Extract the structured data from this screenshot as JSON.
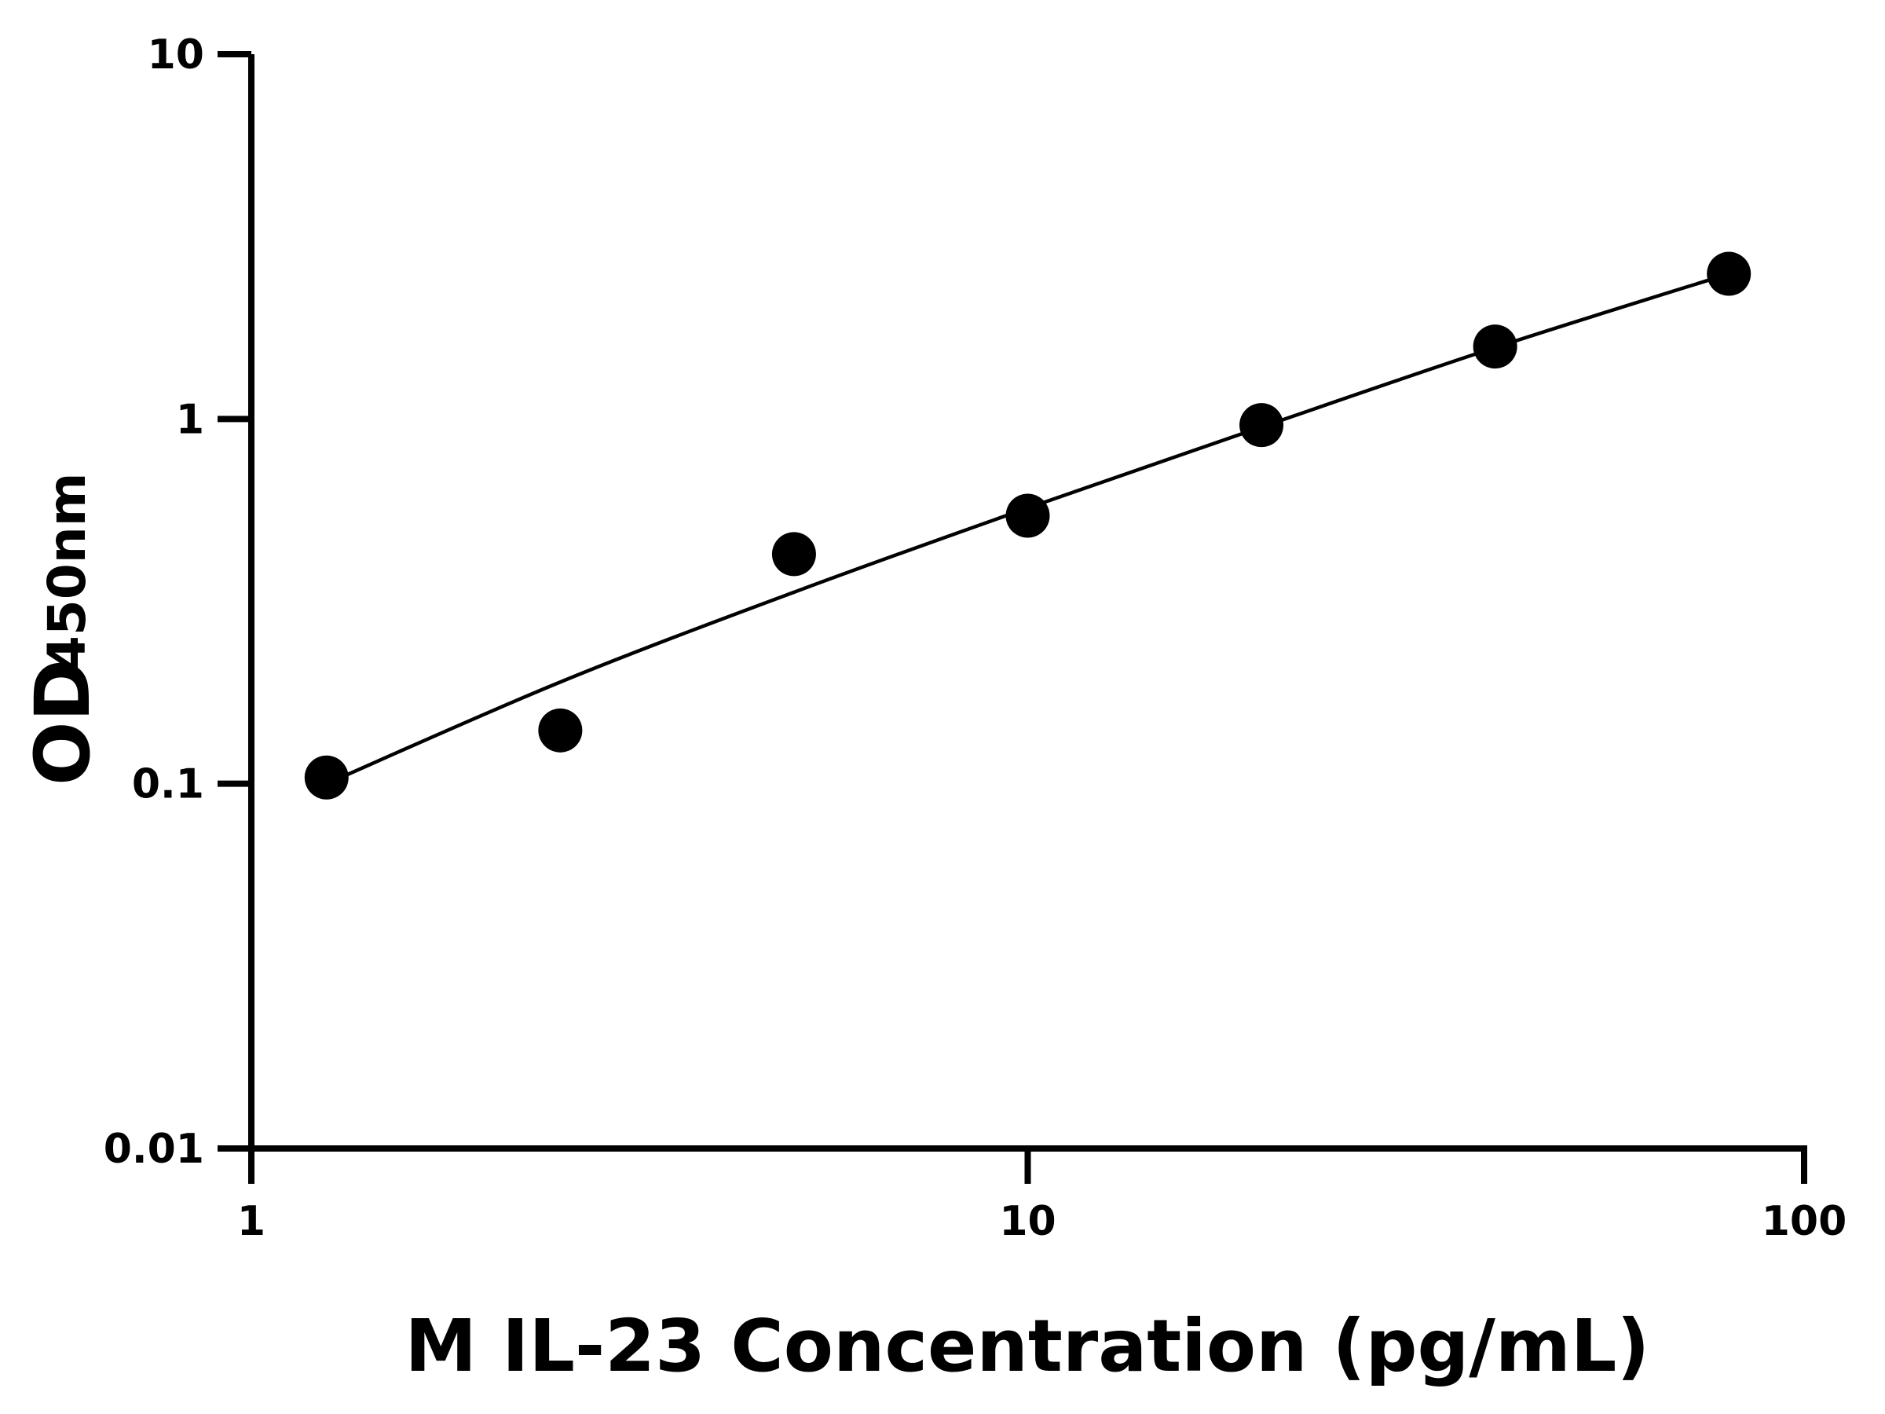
{
  "chart_data": {
    "type": "scatter",
    "title": "",
    "xlabel": "M IL-23 Concentration (pg/mL)",
    "ylabel_main": "OD",
    "ylabel_sub": "450nm",
    "x_scale": "log",
    "y_scale": "log",
    "xlim": [
      1,
      100
    ],
    "ylim": [
      0.01,
      10
    ],
    "x_ticks": [
      "1",
      "10",
      "100"
    ],
    "y_ticks": [
      "0.01",
      "0.1",
      "1",
      "10"
    ],
    "grid": false,
    "legend": "none",
    "color": "#000000",
    "points": {
      "x": [
        1.25,
        2.5,
        5,
        10,
        20,
        40,
        80
      ],
      "y": [
        0.104,
        0.14,
        0.426,
        0.543,
        0.962,
        1.58,
        2.5
      ]
    },
    "fit_curve": {
      "x": [
        1.25,
        2.5,
        5,
        10,
        20,
        40,
        80
      ],
      "y": [
        0.1,
        0.19,
        0.335,
        0.57,
        0.95,
        1.57,
        2.5
      ]
    }
  }
}
